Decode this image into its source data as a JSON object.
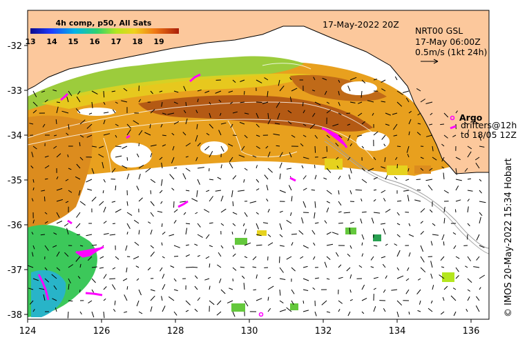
{
  "map": {
    "title_date": "17-May-2022 20Z",
    "model_name": "NRT00 GSL",
    "model_time": "17-May 06:00Z",
    "vector_scale": "0.5m/s (1kt 24h)",
    "credit": "© IMOS 20-May-2022 15:34 Hobart",
    "colorbar": {
      "title": "4h comp, p50, All Sats",
      "ticks": [
        "13",
        "14",
        "15",
        "16",
        "17",
        "18",
        "19"
      ]
    },
    "legend": {
      "argo_label": "Argo",
      "drifters_line1": "drifters@12h",
      "drifters_line2": "to 18/05 12Z"
    },
    "axes": {
      "x_ticks": [
        "124",
        "126",
        "128",
        "130",
        "132",
        "134",
        "136"
      ],
      "y_ticks": [
        "-32",
        "-33",
        "-34",
        "-35",
        "-36",
        "-37",
        "-38"
      ]
    },
    "colors": {
      "land": "#fcc89c",
      "ocean_no_data": "#ffffff",
      "argo_marker": "#ff00ff",
      "drifter_marker": "#ff00ff"
    }
  }
}
